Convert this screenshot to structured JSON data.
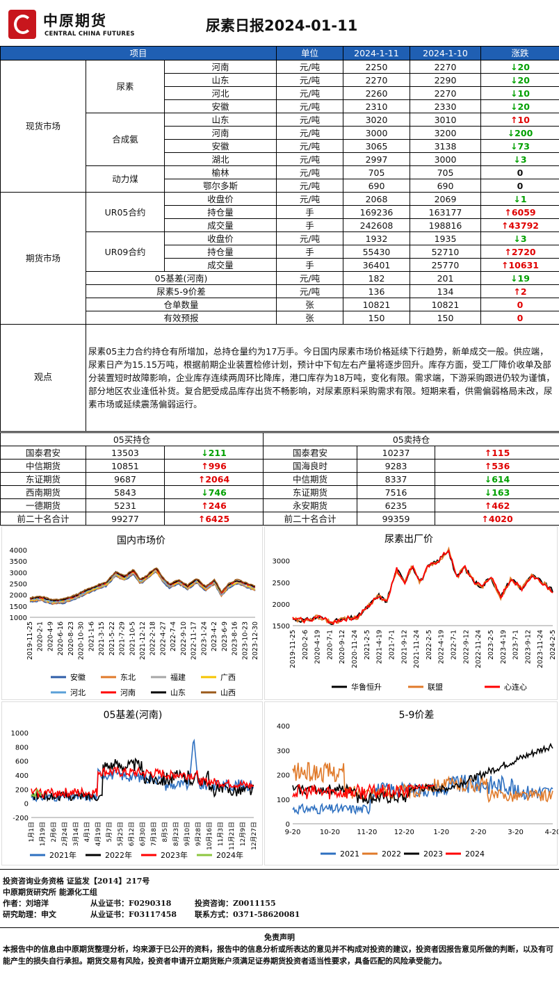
{
  "header": {
    "logo_cn": "中原期货",
    "logo_en": "CENTRAL CHINA FUTURES",
    "title": "尿素日报2024-01-11"
  },
  "table": {
    "headers": [
      "项目",
      "单位",
      "2024-1-11",
      "2024-1-10",
      "涨跌"
    ],
    "spot": {
      "group": "现货市场",
      "blocks": [
        {
          "name": "尿素",
          "rows": [
            [
              "河南",
              "元/吨",
              "2250",
              "2270",
              "↓20",
              "down"
            ],
            [
              "山东",
              "元/吨",
              "2270",
              "2290",
              "↓20",
              "down"
            ],
            [
              "河北",
              "元/吨",
              "2260",
              "2270",
              "↓10",
              "down"
            ],
            [
              "安徽",
              "元/吨",
              "2310",
              "2330",
              "↓20",
              "down"
            ]
          ]
        },
        {
          "name": "合成氨",
          "rows": [
            [
              "山东",
              "元/吨",
              "3020",
              "3010",
              "↑10",
              "up"
            ],
            [
              "河南",
              "元/吨",
              "3000",
              "3200",
              "↓200",
              "down"
            ],
            [
              "安徽",
              "元/吨",
              "3065",
              "3138",
              "↓73",
              "down"
            ],
            [
              "湖北",
              "元/吨",
              "2997",
              "3000",
              "↓3",
              "down"
            ]
          ]
        },
        {
          "name": "动力煤",
          "rows": [
            [
              "榆林",
              "元/吨",
              "705",
              "705",
              "0",
              "flat"
            ],
            [
              "鄂尔多斯",
              "元/吨",
              "690",
              "690",
              "0",
              "flat"
            ]
          ]
        }
      ]
    },
    "futures": {
      "group": "期货市场",
      "blocks": [
        {
          "name": "UR05合约",
          "rows": [
            [
              "收盘价",
              "元/吨",
              "2068",
              "2069",
              "↓1",
              "down"
            ],
            [
              "持仓量",
              "手",
              "169236",
              "163177",
              "↑6059",
              "up"
            ],
            [
              "成交量",
              "手",
              "242608",
              "198816",
              "↑43792",
              "up"
            ]
          ]
        },
        {
          "name": "UR09合约",
          "rows": [
            [
              "收盘价",
              "元/吨",
              "1932",
              "1935",
              "↓3",
              "down"
            ],
            [
              "持仓量",
              "手",
              "55430",
              "52710",
              "↑2720",
              "up"
            ],
            [
              "成交量",
              "手",
              "36401",
              "25770",
              "↑10631",
              "up"
            ]
          ]
        }
      ],
      "singles": [
        [
          "05基差(河南)",
          "元/吨",
          "182",
          "201",
          "↓19",
          "down"
        ],
        [
          "尿素5-9价差",
          "元/吨",
          "136",
          "134",
          "↑2",
          "up"
        ],
        [
          "仓单数量",
          "张",
          "10821",
          "10821",
          "0",
          "flat0"
        ],
        [
          "有效预报",
          "张",
          "150",
          "150",
          "0",
          "flat0"
        ]
      ]
    },
    "view": {
      "label": "观点",
      "text": "尿素05主力合约持仓有所增加，总持仓量约为17万手。今日国内尿素市场价格延续下行趋势，新单成交一般。供应端，尿素日产为15.15万吨，根据前期企业装置检修计划，预计中下旬左右产量将逐步回升。库存方面，受工厂降价收单及部分装置短时故障影响，企业库存连续两周环比降库，港口库存为18万吨，变化有限。需求端，下游采购跟进仍较为谨慎，部分地区农业逢低补货。复合肥受成品库存出货不畅影响，对尿素原料采购需求有限。短期来看，供需偏弱格局未改，尿素市场或延续震荡偏弱运行。"
    }
  },
  "positions": {
    "buy_title": "05买持仓",
    "sell_title": "05卖持仓",
    "rows": [
      [
        "国泰君安",
        "13503",
        "↓211",
        "down",
        "国泰君安",
        "10237",
        "↑115",
        "up"
      ],
      [
        "中信期货",
        "10851",
        "↑996",
        "up",
        "国海良时",
        "9283",
        "↑536",
        "up"
      ],
      [
        "东证期货",
        "9687",
        "↑2064",
        "up",
        "中信期货",
        "8337",
        "↓614",
        "down"
      ],
      [
        "西南期货",
        "5843",
        "↓746",
        "down",
        "东证期货",
        "7516",
        "↓163",
        "down"
      ],
      [
        "一德期货",
        "5231",
        "↑246",
        "up",
        "永安期货",
        "6235",
        "↑462",
        "up"
      ],
      [
        "前二十名合计",
        "99277",
        "↑6425",
        "up",
        "前二十名合计",
        "99359",
        "↑4020",
        "up"
      ]
    ]
  },
  "chart_data": [
    {
      "type": "line",
      "title": "国内市场价",
      "ylim": [
        1000,
        4000
      ],
      "yticks": [
        "4000",
        "3500",
        "3000",
        "2500",
        "2000",
        "1500",
        "1000"
      ],
      "xticks": [
        "2019-11-25",
        "2020-2-1",
        "2020-4-9",
        "2020-6-16",
        "2020-8-23",
        "2020-10-30",
        "2021-1-6",
        "2021-3-15",
        "2021-5-22",
        "2021-7-29",
        "2021-10-5",
        "2021-12-12",
        "2022-2-18",
        "2022-4-27",
        "2022-7-4",
        "2022-9-10",
        "2022-11-17",
        "2023-1-24",
        "2023-4-2",
        "2023-6-9",
        "2023-8-16",
        "2023-10-23",
        "2023-12-30"
      ],
      "series": [
        {
          "name": "安徽",
          "color": "#2e5da8"
        },
        {
          "name": "东北",
          "color": "#e07a2a"
        },
        {
          "name": "福建",
          "color": "#a6a6a6"
        },
        {
          "name": "广西",
          "color": "#f5c400"
        },
        {
          "name": "河北",
          "color": "#5aa0d8"
        },
        {
          "name": "河南",
          "color": "#ff0000"
        },
        {
          "name": "山东",
          "color": "#000000"
        },
        {
          "name": "山西",
          "color": "#9b5a1a"
        }
      ],
      "points": [
        [
          0,
          1800
        ],
        [
          0.05,
          1850
        ],
        [
          0.1,
          1700
        ],
        [
          0.15,
          1750
        ],
        [
          0.2,
          1900
        ],
        [
          0.25,
          2150
        ],
        [
          0.3,
          2350
        ],
        [
          0.34,
          2500
        ],
        [
          0.38,
          2950
        ],
        [
          0.42,
          2750
        ],
        [
          0.46,
          3050
        ],
        [
          0.49,
          2600
        ],
        [
          0.52,
          2800
        ],
        [
          0.56,
          3150
        ],
        [
          0.59,
          2700
        ],
        [
          0.62,
          2400
        ],
        [
          0.66,
          2600
        ],
        [
          0.7,
          2350
        ],
        [
          0.74,
          2650
        ],
        [
          0.78,
          2300
        ],
        [
          0.82,
          2600
        ],
        [
          0.85,
          2050
        ],
        [
          0.88,
          2400
        ],
        [
          0.92,
          2600
        ],
        [
          0.96,
          2450
        ],
        [
          1,
          2300
        ]
      ]
    },
    {
      "type": "line",
      "title": "尿素出厂价",
      "ylim": [
        1500,
        3300
      ],
      "yticks": [
        "3000",
        "2500",
        "2000",
        "1500"
      ],
      "xticks": [
        "2019-11-25",
        "2020-2-6",
        "2020-4-19",
        "2020-7-1",
        "2020-9-12",
        "2020-11-24",
        "2021-2-5",
        "2021-4-19",
        "2021-7-1",
        "2021-9-12",
        "2021-11-24",
        "2022-2-5",
        "2022-4-19",
        "2022-7-1",
        "2022-9-12",
        "2022-11-24",
        "2023-2-5",
        "2023-4-19",
        "2023-7-1",
        "2023-9-12",
        "2023-11-24",
        "2024-2-5"
      ],
      "series": [
        {
          "name": "华鲁恒升",
          "color": "#000000"
        },
        {
          "name": "联盟",
          "color": "#e07a2a"
        },
        {
          "name": "心连心",
          "color": "#ff0000"
        }
      ],
      "points": [
        [
          0,
          1650
        ],
        [
          0.05,
          1620
        ],
        [
          0.1,
          1700
        ],
        [
          0.15,
          1580
        ],
        [
          0.2,
          1650
        ],
        [
          0.25,
          1700
        ],
        [
          0.3,
          2000
        ],
        [
          0.33,
          2200
        ],
        [
          0.36,
          2050
        ],
        [
          0.4,
          2800
        ],
        [
          0.43,
          2500
        ],
        [
          0.46,
          2900
        ],
        [
          0.49,
          2500
        ],
        [
          0.52,
          2850
        ],
        [
          0.56,
          3000
        ],
        [
          0.6,
          3250
        ],
        [
          0.63,
          2600
        ],
        [
          0.66,
          2850
        ],
        [
          0.7,
          2500
        ],
        [
          0.73,
          2400
        ],
        [
          0.76,
          2650
        ],
        [
          0.8,
          2150
        ],
        [
          0.84,
          2600
        ],
        [
          0.88,
          2350
        ],
        [
          0.92,
          2650
        ],
        [
          0.96,
          2500
        ],
        [
          1,
          2300
        ]
      ]
    },
    {
      "type": "line",
      "title": "05基差(河南)",
      "ylim": [
        -200,
        1000
      ],
      "yticks": [
        "1000",
        "800",
        "600",
        "400",
        "200",
        "0",
        "-200"
      ],
      "xticks": [
        "1月1日",
        "1月19日",
        "2月6日",
        "2月24日",
        "3月14日",
        "4月1日",
        "4月19日",
        "5月7日",
        "5月25日",
        "6月12日",
        "6月30日",
        "7月18日",
        "8月5日",
        "8月23日",
        "9月10日",
        "9月28日",
        "10月16日",
        "11月3日",
        "11月21日",
        "12月9日",
        "12月27日"
      ],
      "series": [
        {
          "name": "2021年",
          "color": "#2e70c0"
        },
        {
          "name": "2022年",
          "color": "#000000"
        },
        {
          "name": "2023年",
          "color": "#ff0000"
        },
        {
          "name": "2024年",
          "color": "#8cc63f"
        }
      ]
    },
    {
      "type": "line",
      "title": "5-9价差",
      "ylim": [
        0,
        400
      ],
      "yticks": [
        "400",
        "300",
        "200",
        "100",
        "0"
      ],
      "xticks": [
        "9-20",
        "10-20",
        "11-20",
        "12-20",
        "1-20",
        "2-20",
        "3-20",
        "4-20"
      ],
      "series": [
        {
          "name": "2021",
          "color": "#2e70c0"
        },
        {
          "name": "2022",
          "color": "#e07a2a"
        },
        {
          "name": "2023",
          "color": "#000000"
        },
        {
          "name": "2024",
          "color": "#ff0000"
        }
      ]
    }
  ],
  "footer": {
    "l1": "投资咨询业务资格   证监发【2014】217号",
    "l2": "中原期货研究所   能源化工组",
    "l3a": "作者：刘培洋",
    "l3b": "从业证书：F0290318",
    "l3c": "投资咨询：Z0011155",
    "l4a": "研究助理：申文",
    "l4b": "从业证书：F03117458",
    "l4c": "联系方式：0371-58620081",
    "disc_title": "免责声明",
    "disc_text": "本报告中的信息由中原期货整理分析，均来源于已公开的资料，报告中的信息分析或所表达的意见并不构成对投资的建议，投资者因报告意见所做的判断，以及有可能产生的损失自行承担。期货交易有风险，投资者申请开立期货账户须满足证券期货投资者适当性要求，具备匹配的风险承受能力。"
  }
}
